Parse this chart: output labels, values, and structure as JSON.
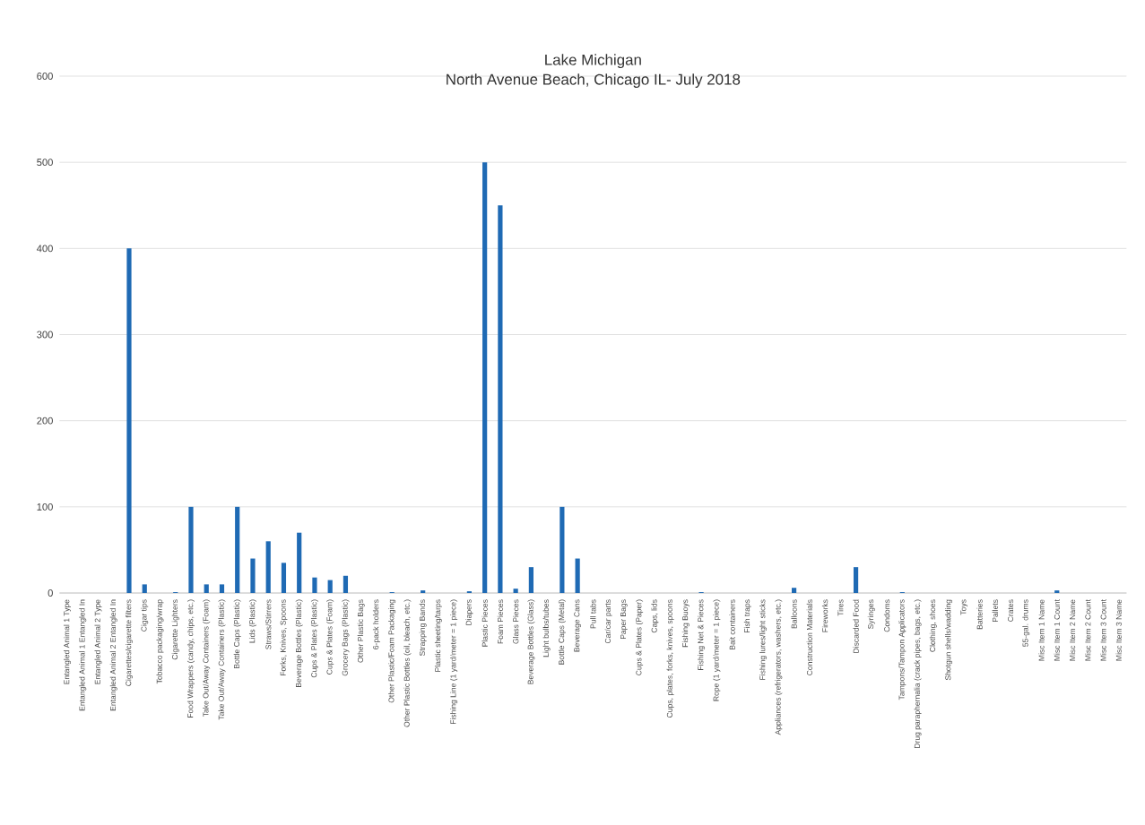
{
  "chart_data": {
    "type": "bar",
    "title": "Lake Michigan",
    "subtitle": "North Avenue Beach, Chicago IL- July 2018",
    "categories": [
      "Entangled Animal 1 Type",
      "Entangled Animal 1 Entangled In",
      "Entangled Animal 2 Type",
      "Entangled Animal 2 Entangled In",
      "Cigarettes/cigarette filters",
      "Cigar tips",
      "Tobacco packaging/wrap",
      "Cigarette Lighters",
      "Food Wrappers (candy, chips, etc.)",
      "Take Out/Away Containers (Foam)",
      "Take Out/Away Containers (Plastic)",
      "Bottle Caps (Plastic)",
      "Lids (Plastic)",
      "Straws/Stirrers",
      "Forks, Knives, Spoons",
      "Beverage Bottles (Plastic)",
      "Cups & Plates (Plastic)",
      "Cups & Plates (Foam)",
      "Grocery Bags (Plastic)",
      "Other Plastic Bags",
      "6-pack holders",
      "Other Plastic/Foam Packaging",
      "Other Plastic Bottles (oil, bleach, etc.)",
      "Strapping Bands",
      "Plastic sheeting/tarps",
      "Fishing Line (1 yard/meter = 1 piece)",
      "Diapers",
      "Plastic Pieces",
      "Foam Pieces",
      "Glass Pieces",
      "Beverage Bottles (Glass)",
      "Light bulbs/tubes",
      "Bottle Caps (Metal)",
      "Beverage Cans",
      "Pull tabs",
      "Car/car parts",
      "Paper Bags",
      "Cups & Plates (Paper)",
      "Caps, lids",
      "Cups, plates, forks, knives, spoons",
      "Fishing Buoys",
      "Fishing Net & Pieces",
      "Rope (1 yard/meter = 1 piece)",
      "Bait containers",
      "Fish traps",
      "Fishing lures/light sticks",
      "Appliances (refrigerators, washers, etc.)",
      "Balloons",
      "Construction Materials",
      "Fireworks",
      "Tires",
      "Discarded Food",
      "Syringes",
      "Condoms",
      "Tampons/Tampon Applicators",
      "Drug paraphernalia (crack pipes, bags, etc.)",
      "Clothing, shoes",
      "Shotgun shells/wadding",
      "Toys",
      "Batteries",
      "Pallets",
      "Crates",
      "55-gal. drums",
      "Misc Item 1 Name",
      "Misc Item 1 Count",
      "Misc Item 2 Name",
      "Misc Item 2 Count",
      "Misc Item 3 Count",
      "Misc Item 3 Name"
    ],
    "values": [
      0,
      0,
      0,
      0,
      400,
      10,
      0,
      1,
      100,
      10,
      10,
      100,
      40,
      60,
      35,
      70,
      18,
      15,
      20,
      0,
      0,
      1,
      0,
      3,
      0,
      0,
      2,
      500,
      450,
      5,
      30,
      0,
      100,
      40,
      0,
      0,
      0,
      0,
      0,
      0,
      0,
      1,
      0,
      0,
      0,
      0,
      0,
      6,
      0,
      0,
      0,
      30,
      0,
      0,
      1,
      0,
      0,
      0,
      0,
      0,
      0,
      0,
      0,
      0,
      3,
      0,
      0,
      0,
      0
    ],
    "color": "#1f6ab4",
    "ylim": [
      0,
      600
    ],
    "yticks": [
      0,
      100,
      200,
      300,
      400,
      500,
      600
    ],
    "grid": "y"
  }
}
